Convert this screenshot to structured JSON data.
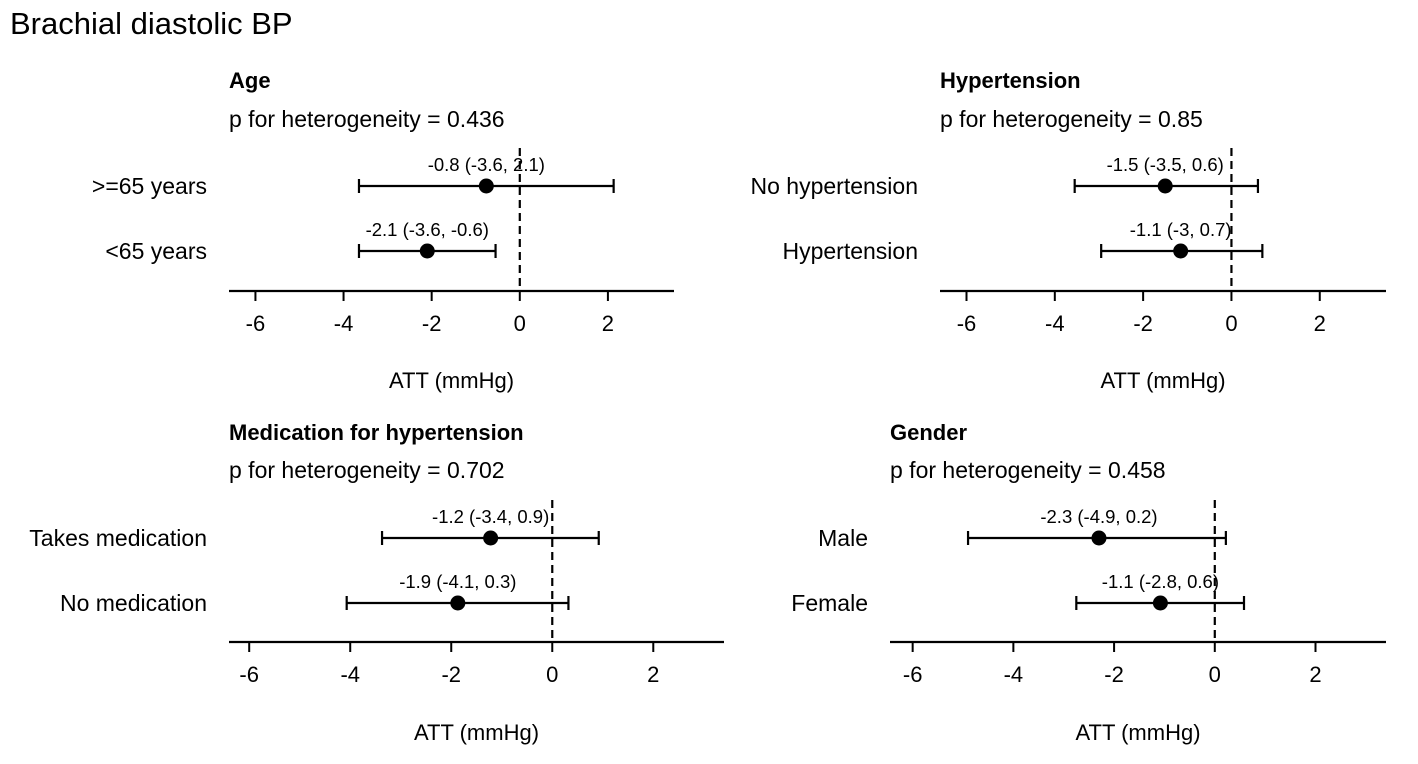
{
  "title": "Brachial diastolic BP",
  "chart_data": [
    {
      "type": "forest",
      "title": "Age",
      "subtitle": "p for heterogeneity = 0.436",
      "xlabel": "ATT (mmHg)",
      "xticks": [
        -6,
        -4,
        -2,
        0,
        2
      ],
      "xlim": [
        -6.6,
        3.5
      ],
      "reference_line": 0,
      "rows": [
        {
          "label": ">=65 years",
          "estimate": -0.76,
          "lower": -3.65,
          "upper": 2.13,
          "annotation": "-0.8 (-3.6, 2.1)"
        },
        {
          "label": "<65 years",
          "estimate": -2.1,
          "lower": -3.65,
          "upper": -0.55,
          "annotation": "-2.1 (-3.6, -0.6)"
        }
      ]
    },
    {
      "type": "forest",
      "title": "Hypertension",
      "subtitle": "p for heterogeneity = 0.85",
      "xlabel": "ATT (mmHg)",
      "xticks": [
        -6,
        -4,
        -2,
        0,
        2
      ],
      "xlim": [
        -6.6,
        3.5
      ],
      "reference_line": 0,
      "rows": [
        {
          "label": "No hypertension",
          "estimate": -1.5,
          "lower": -3.55,
          "upper": 0.6,
          "annotation": "-1.5 (-3.5, 0.6)"
        },
        {
          "label": "Hypertension",
          "estimate": -1.15,
          "lower": -2.95,
          "upper": 0.7,
          "annotation": "-1.1 (-3, 0.7)"
        }
      ]
    },
    {
      "type": "forest",
      "title": "Medication for hypertension",
      "subtitle": "p for heterogeneity = 0.702",
      "xlabel": "ATT (mmHg)",
      "xticks": [
        -6,
        -4,
        -2,
        0,
        2
      ],
      "xlim": [
        -6.4,
        3.4
      ],
      "reference_line": 0,
      "rows": [
        {
          "label": "Takes medication",
          "estimate": -1.22,
          "lower": -3.37,
          "upper": 0.92,
          "annotation": "-1.2 (-3.4, 0.9)"
        },
        {
          "label": "No medication",
          "estimate": -1.87,
          "lower": -4.07,
          "upper": 0.32,
          "annotation": "-1.9 (-4.1, 0.3)"
        }
      ]
    },
    {
      "type": "forest",
      "title": "Gender",
      "subtitle": "p for heterogeneity = 0.458",
      "xlabel": "ATT (mmHg)",
      "xticks": [
        -6,
        -4,
        -2,
        0,
        2
      ],
      "xlim": [
        -6.45,
        3.4
      ],
      "reference_line": 0,
      "rows": [
        {
          "label": "Male",
          "estimate": -2.3,
          "lower": -4.9,
          "upper": 0.22,
          "annotation": "-2.3 (-4.9, 0.2)"
        },
        {
          "label": "Female",
          "estimate": -1.08,
          "lower": -2.75,
          "upper": 0.58,
          "annotation": "-1.1 (-2.8, 0.6)"
        }
      ]
    }
  ]
}
